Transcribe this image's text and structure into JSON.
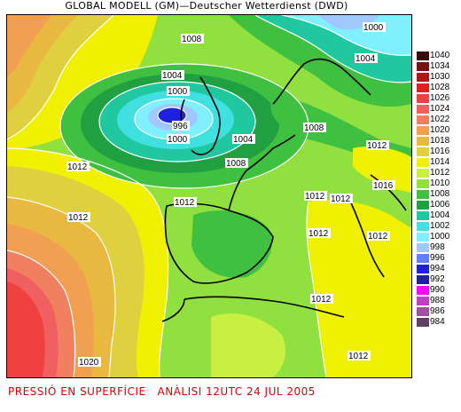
{
  "header": {
    "title": "GLOBAL MODELL (GM)—Deutscher Wetterdienst (DWD)"
  },
  "footer": {
    "text": "PRESSIÓ EN SUPERFÍCIE   ANÀLISI 12UTC 24 JUL 2005"
  },
  "legend": [
    {
      "label": "1040",
      "color": "#3a0a0a"
    },
    {
      "label": "1034",
      "color": "#7a1010"
    },
    {
      "label": "1030",
      "color": "#b01818"
    },
    {
      "label": "1028",
      "color": "#e02020"
    },
    {
      "label": "1026",
      "color": "#f04040"
    },
    {
      "label": "1024",
      "color": "#f06060"
    },
    {
      "label": "1022",
      "color": "#f08060"
    },
    {
      "label": "1020",
      "color": "#f0a050"
    },
    {
      "label": "1018",
      "color": "#e8b840"
    },
    {
      "label": "1016",
      "color": "#e0d040"
    },
    {
      "label": "1014",
      "color": "#f0f000"
    },
    {
      "label": "1012",
      "color": "#c8f040"
    },
    {
      "label": "1010",
      "color": "#90e040"
    },
    {
      "label": "1008",
      "color": "#40c040"
    },
    {
      "label": "1006",
      "color": "#20a040"
    },
    {
      "label": "1004",
      "color": "#20c8a0"
    },
    {
      "label": "1002",
      "color": "#40e0e0"
    },
    {
      "label": "1000",
      "color": "#80f0ff"
    },
    {
      "label": "998",
      "color": "#a0c8ff"
    },
    {
      "label": "996",
      "color": "#6080ff"
    },
    {
      "label": "994",
      "color": "#2020e0"
    },
    {
      "label": "992",
      "color": "#2020a0"
    },
    {
      "label": "990",
      "color": "#ff00ff"
    },
    {
      "label": "988",
      "color": "#c040c0"
    },
    {
      "label": "986",
      "color": "#a050a0"
    },
    {
      "label": "984",
      "color": "#604060"
    }
  ],
  "isobar_labels": [
    {
      "text": "1008"
    },
    {
      "text": "1004"
    },
    {
      "text": "1000"
    },
    {
      "text": "996"
    },
    {
      "text": "1000"
    },
    {
      "text": "1004"
    },
    {
      "text": "1000"
    },
    {
      "text": "1004"
    },
    {
      "text": "1008"
    },
    {
      "text": "1008"
    },
    {
      "text": "1012"
    },
    {
      "text": "1012"
    },
    {
      "text": "1012"
    },
    {
      "text": "1012"
    },
    {
      "text": "1012"
    },
    {
      "text": "1016"
    },
    {
      "text": "1012"
    },
    {
      "text": "1012"
    },
    {
      "text": "1012"
    },
    {
      "text": "1012"
    },
    {
      "text": "1020"
    },
    {
      "text": "1012"
    }
  ]
}
